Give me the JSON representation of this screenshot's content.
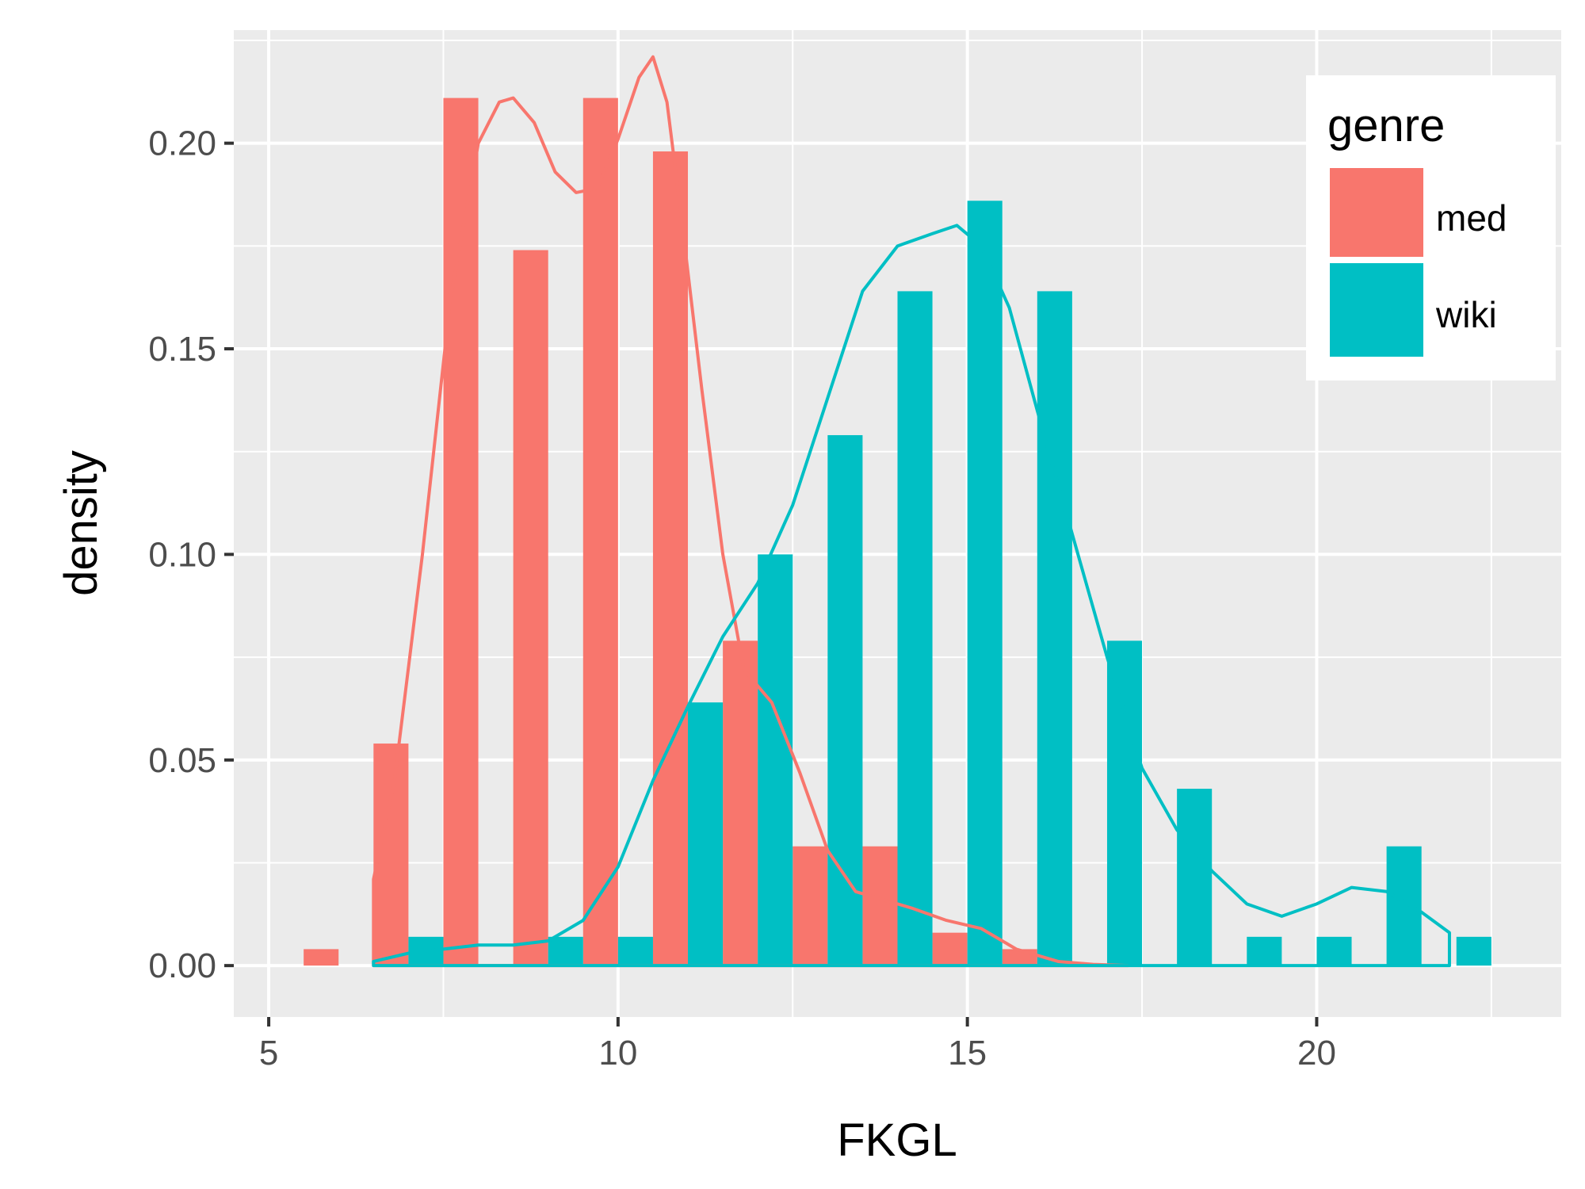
{
  "chart_data": {
    "type": "bar",
    "title": "",
    "xlabel": "FKGL",
    "ylabel": "density",
    "xlim": [
      4.5,
      23.5
    ],
    "ylim": [
      -0.0125,
      0.2275
    ],
    "x_ticks": [
      5,
      10,
      15,
      20
    ],
    "x_tick_labels": [
      "5",
      "10",
      "15",
      "20"
    ],
    "y_ticks": [
      0,
      0.05,
      0.1,
      0.15,
      0.2
    ],
    "y_tick_labels": [
      "0.00",
      "0.05",
      "0.10",
      "0.15",
      "0.20"
    ],
    "bin_width": 1.0,
    "bar_width": 0.5,
    "grid": true,
    "legend": {
      "title": "genre",
      "placement": "right-inside-top"
    },
    "series": [
      {
        "name": "med",
        "color": "#F8766D",
        "bins_x": [
          5.75,
          6.75,
          7.75,
          8.75,
          9.75,
          10.75,
          11.75,
          12.75,
          13.75,
          14.75,
          15.75
        ],
        "values": [
          0.004,
          0.054,
          0.211,
          0.174,
          0.211,
          0.198,
          0.079,
          0.029,
          0.029,
          0.008,
          0.004
        ],
        "density_curve": {
          "x": [
            6.5,
            6.8,
            7.2,
            7.6,
            8.0,
            8.3,
            8.5,
            8.8,
            9.1,
            9.4,
            9.7,
            10.0,
            10.3,
            10.5,
            10.7,
            10.9,
            11.2,
            11.5,
            11.8,
            12.2,
            12.6,
            13.0,
            13.4,
            13.8,
            14.2,
            14.7,
            15.2,
            15.7,
            16.3,
            16.8,
            17.3
          ],
          "y": [
            0.021,
            0.045,
            0.1,
            0.162,
            0.2,
            0.21,
            0.211,
            0.205,
            0.193,
            0.188,
            0.189,
            0.201,
            0.216,
            0.221,
            0.21,
            0.183,
            0.14,
            0.1,
            0.072,
            0.064,
            0.047,
            0.028,
            0.018,
            0.016,
            0.014,
            0.011,
            0.009,
            0.004,
            0.001,
            0.0003,
            0.0
          ]
        }
      },
      {
        "name": "wiki",
        "color": "#00BFC4",
        "bins_x": [
          7.25,
          9.25,
          10.25,
          11.25,
          12.25,
          13.25,
          14.25,
          15.25,
          16.25,
          17.25,
          18.25,
          19.25,
          20.25,
          21.25,
          22.25
        ],
        "values": [
          0.007,
          0.007,
          0.007,
          0.064,
          0.1,
          0.129,
          0.164,
          0.186,
          0.164,
          0.079,
          0.043,
          0.007,
          0.007,
          0.029,
          0.007
        ],
        "density_curve": {
          "x": [
            6.5,
            7.0,
            7.5,
            8.0,
            8.5,
            9.0,
            9.5,
            10.0,
            10.5,
            11.0,
            11.5,
            12.0,
            12.5,
            13.0,
            13.5,
            14.0,
            14.5,
            14.85,
            15.2,
            15.6,
            16.0,
            16.5,
            17.0,
            17.5,
            18.0,
            18.5,
            19.0,
            19.5,
            20.0,
            20.5,
            21.0,
            21.5,
            21.9
          ],
          "y": [
            0.001,
            0.003,
            0.004,
            0.005,
            0.005,
            0.006,
            0.011,
            0.024,
            0.045,
            0.063,
            0.08,
            0.093,
            0.112,
            0.138,
            0.164,
            0.175,
            0.178,
            0.18,
            0.175,
            0.16,
            0.135,
            0.105,
            0.075,
            0.048,
            0.033,
            0.023,
            0.015,
            0.012,
            0.015,
            0.019,
            0.018,
            0.013,
            0.008
          ]
        }
      }
    ]
  }
}
